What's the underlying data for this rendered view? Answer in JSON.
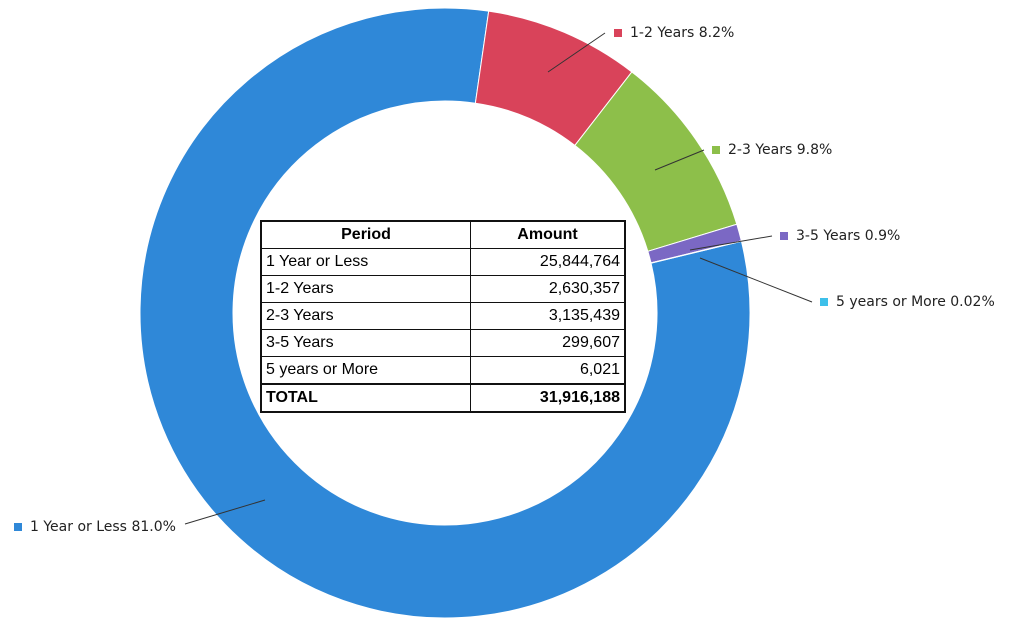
{
  "chart_data": {
    "type": "donut",
    "categories": [
      "1 Year or Less",
      "1-2 Years",
      "2-3 Years",
      "3-5 Years",
      "5 years or More"
    ],
    "values": [
      81.0,
      8.2,
      9.8,
      0.9,
      0.02
    ],
    "value_labels": [
      "81.0%",
      "8.2%",
      "9.8%",
      "0.9%",
      "0.02%"
    ],
    "colors": [
      "#2f88d8",
      "#d9435a",
      "#8dbf4a",
      "#7b68c4",
      "#3ec0ea"
    ]
  },
  "table": {
    "header": [
      "Period",
      "Amount"
    ],
    "rows": [
      [
        "1 Year or Less",
        "25,844,764"
      ],
      [
        "1-2 Years",
        "2,630,357"
      ],
      [
        "2-3 Years",
        "3,135,439"
      ],
      [
        "3-5 Years",
        "299,607"
      ],
      [
        "5 years or More",
        "6,021"
      ],
      [
        "TOTAL",
        "31,916,188"
      ]
    ]
  }
}
